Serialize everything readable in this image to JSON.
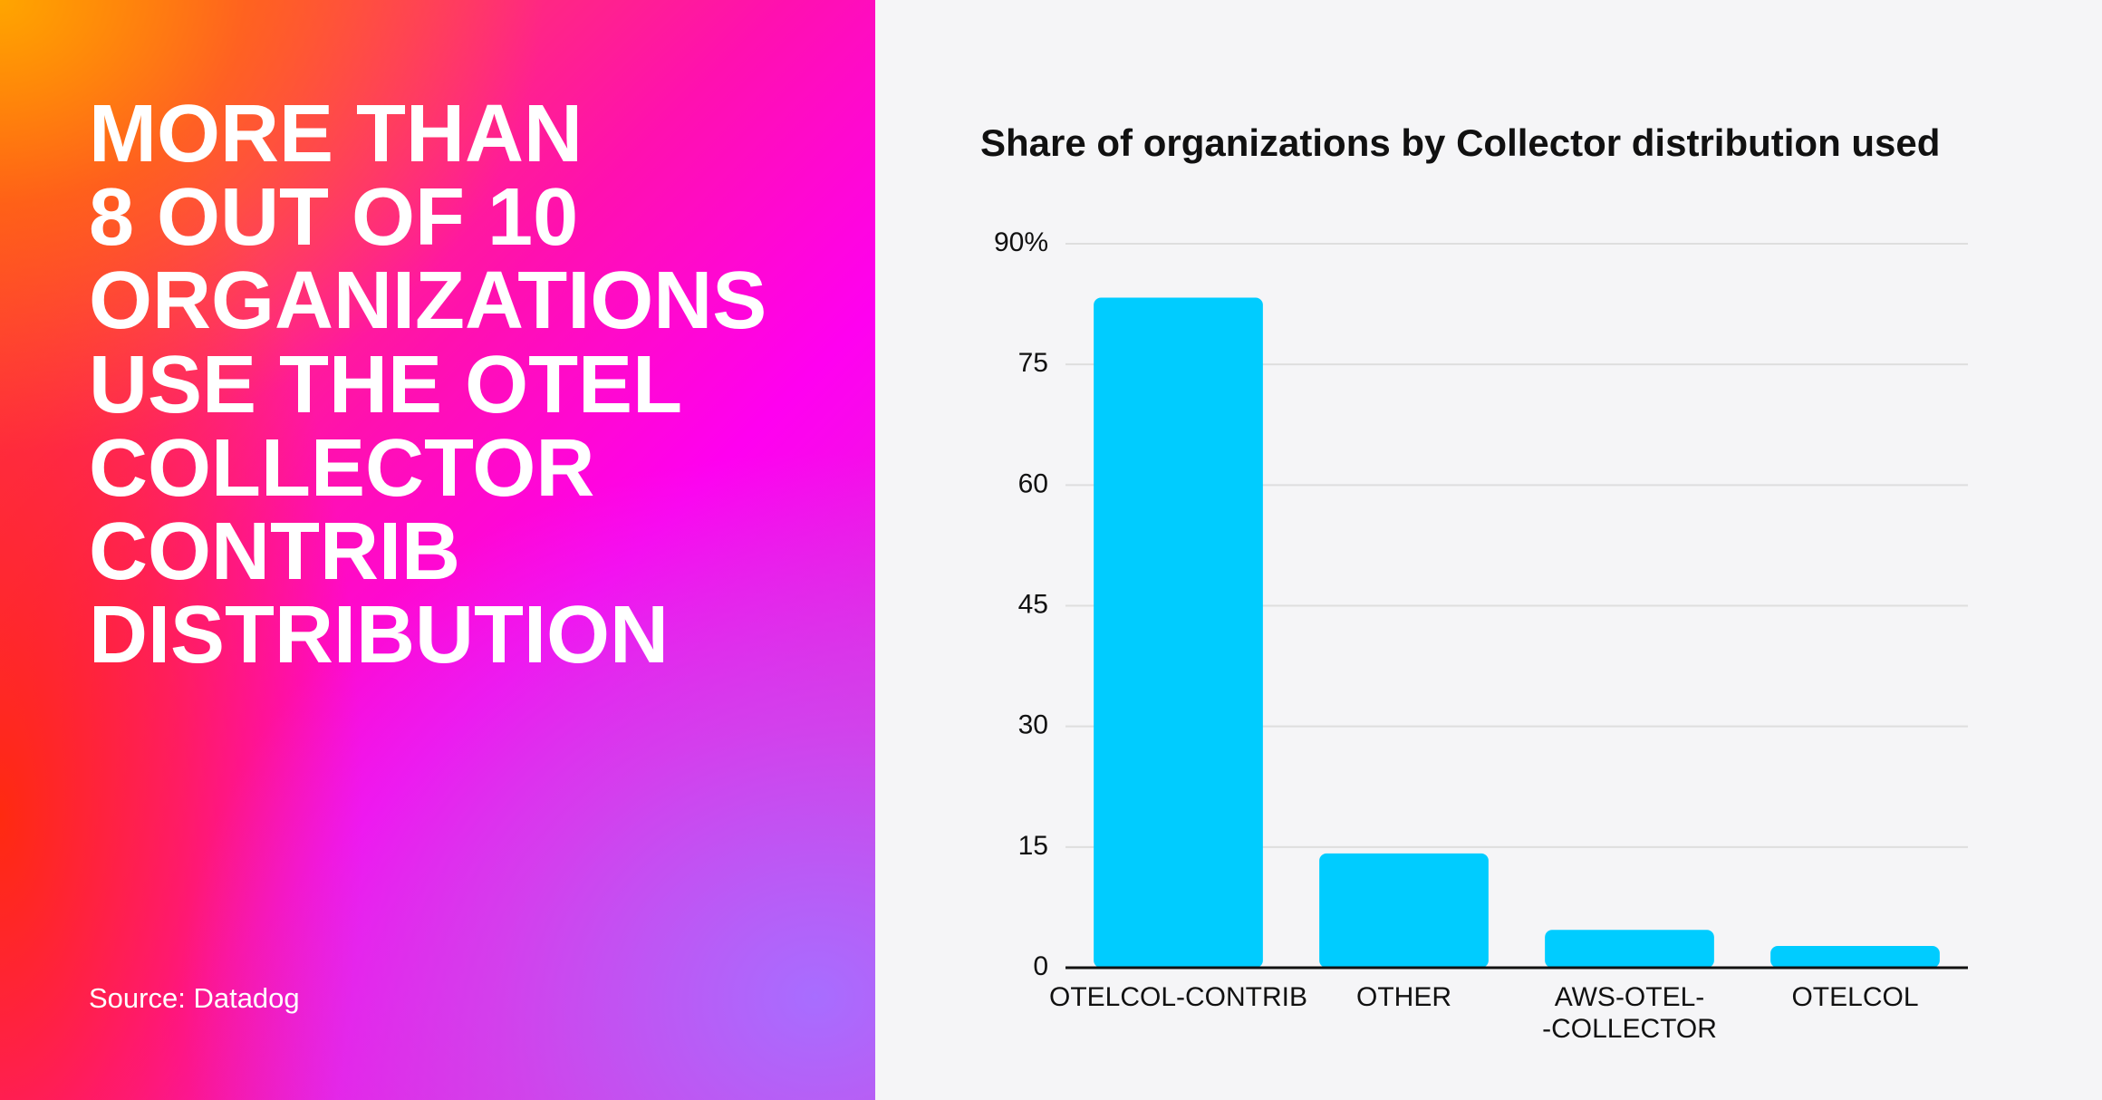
{
  "headline": [
    "MORE THAN",
    "8 OUT OF 10",
    "ORGANIZATIONS",
    "USE THE OTEL",
    "COLLECTOR",
    "CONTRIB",
    "DISTRIBUTION"
  ],
  "source": "Source: Datadog",
  "chart_data": {
    "type": "bar",
    "title": "Share of organizations by Collector distribution used",
    "categories": [
      "OTELCOL-CONTRIB",
      "OTHER",
      "AWS-OTEL-\n-COLLECTOR",
      "OTELCOL"
    ],
    "values": [
      83.3,
      14.2,
      4.7,
      2.7
    ],
    "color": "#00ccff",
    "ylim": [
      0,
      90
    ],
    "yticks": [
      0,
      15,
      30,
      45,
      60,
      75,
      {
        "value": 90,
        "label": "90%"
      }
    ],
    "grid": true
  }
}
